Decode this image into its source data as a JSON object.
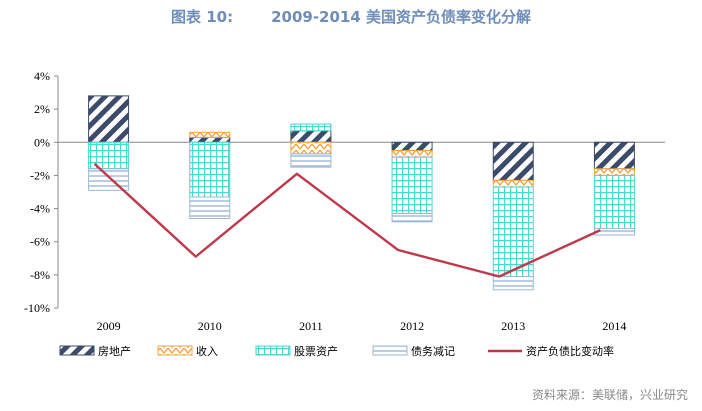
{
  "header": {
    "figure_label": "图表 10:",
    "title_text": "2009-2014 美国资产负债率变化分解"
  },
  "source_text": "资料来源：美联储，兴业研究",
  "chart_data": {
    "type": "bar",
    "subtype": "stacked-bar-with-line",
    "categories": [
      "2009",
      "2010",
      "2011",
      "2012",
      "2013",
      "2014"
    ],
    "ylim": [
      -10,
      4
    ],
    "yticks": [
      4,
      2,
      0,
      -2,
      -4,
      -6,
      -8,
      -10
    ],
    "ytick_labels": [
      "4%",
      "2%",
      "0%",
      "-2%",
      "-4%",
      "-6%",
      "-8%",
      "-10%"
    ],
    "unit": "%",
    "grid": false,
    "legend_position": "bottom",
    "series": [
      {
        "name": "房地产",
        "kind": "bar",
        "values": [
          2.8,
          0.3,
          0.7,
          -0.5,
          -2.3,
          -1.6
        ],
        "color": "#3d4b6b",
        "pattern": "diag-stripe"
      },
      {
        "name": "收入",
        "kind": "bar",
        "values": [
          0.0,
          0.3,
          -0.7,
          -0.4,
          -0.4,
          -0.4
        ],
        "color": "#f5a445",
        "pattern": "zigzag"
      },
      {
        "name": "股票资产",
        "kind": "bar",
        "values": [
          -1.6,
          -3.3,
          0.4,
          -3.4,
          -5.4,
          -3.2
        ],
        "color": "#4fd6cf",
        "pattern": "grid"
      },
      {
        "name": "债务减记",
        "kind": "bar",
        "values": [
          -1.3,
          -1.3,
          -0.8,
          -0.5,
          -0.8,
          -0.4
        ],
        "color": "#9bbad6",
        "pattern": "hlines"
      },
      {
        "name": "资产负债比变动率",
        "kind": "line",
        "values": [
          -1.3,
          -6.9,
          -1.9,
          -6.5,
          -8.1,
          -5.3
        ],
        "color": "#c0394b"
      }
    ]
  }
}
